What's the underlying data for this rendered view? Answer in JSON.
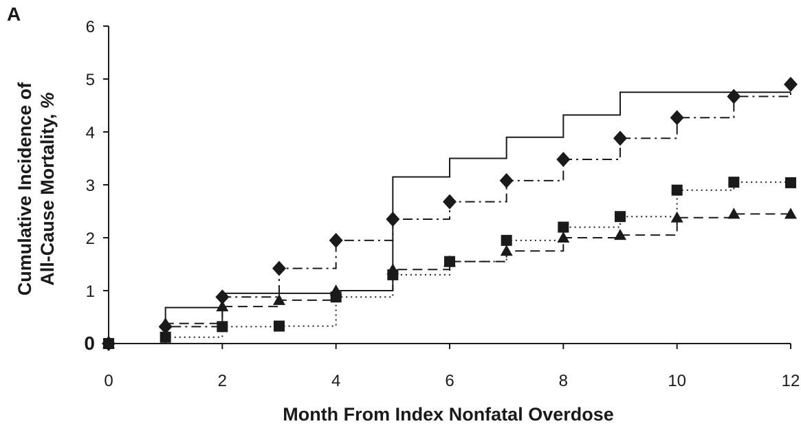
{
  "chart_data": {
    "type": "line",
    "panel_label": "A",
    "title": "",
    "xlabel": "Month From Index Nonfatal Overdose",
    "ylabel_line1": "Cumulative Incidence of",
    "ylabel_line2_main": "All-Cause Mortality, ",
    "ylabel_line2_italic": "%",
    "xlim": [
      0,
      12
    ],
    "ylim": [
      0,
      6
    ],
    "xticks": [
      0,
      2,
      4,
      6,
      8,
      10,
      12
    ],
    "yticks": [
      0,
      1,
      2,
      3,
      4,
      5,
      6
    ],
    "grid": false,
    "legend": "none",
    "line_style": "step",
    "series": [
      {
        "line": "solid",
        "marker": "none",
        "x": [
          0,
          1,
          2,
          3,
          4,
          5,
          6,
          7,
          8,
          9,
          10,
          11,
          12
        ],
        "y": [
          0,
          0.68,
          0.95,
          0.95,
          1.0,
          3.15,
          3.5,
          3.9,
          4.32,
          4.75,
          4.75,
          4.75,
          4.75
        ]
      },
      {
        "line": "dash-dot",
        "marker": "diamond",
        "x": [
          0,
          1,
          2,
          3,
          4,
          5,
          6,
          7,
          8,
          9,
          10,
          11,
          12
        ],
        "y": [
          0,
          0.32,
          0.88,
          1.42,
          1.95,
          2.35,
          2.68,
          3.08,
          3.48,
          3.88,
          4.27,
          4.67,
          4.9
        ]
      },
      {
        "line": "dotted",
        "marker": "square",
        "x": [
          0,
          1,
          2,
          3,
          4,
          5,
          6,
          7,
          8,
          9,
          10,
          11,
          12
        ],
        "y": [
          0,
          0.12,
          0.32,
          0.33,
          0.88,
          1.3,
          1.55,
          1.95,
          2.2,
          2.4,
          2.9,
          3.05,
          3.04
        ]
      },
      {
        "line": "dashed",
        "marker": "triangle",
        "x": [
          0,
          1,
          2,
          3,
          4,
          5,
          6,
          7,
          8,
          9,
          10,
          11,
          12
        ],
        "y": [
          0,
          0.38,
          0.7,
          0.82,
          1.0,
          1.4,
          1.55,
          1.75,
          2.0,
          2.05,
          2.38,
          2.45,
          2.45
        ]
      }
    ]
  }
}
